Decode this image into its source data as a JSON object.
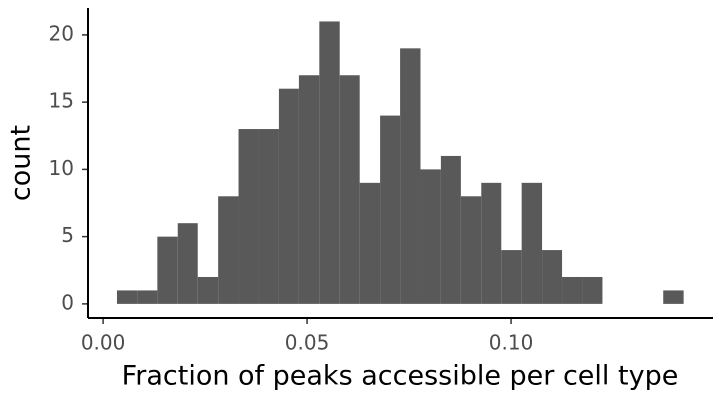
{
  "chart_data": {
    "type": "histogram",
    "x_label": "Fraction of peaks accessible per cell type",
    "y_label": "count",
    "bins": [
      0.0034,
      0.0084,
      0.0133,
      0.0183,
      0.0232,
      0.0282,
      0.0332,
      0.0381,
      0.0431,
      0.048,
      0.053,
      0.058,
      0.0629,
      0.0679,
      0.0728,
      0.0778,
      0.0828,
      0.0877,
      0.0927,
      0.0976,
      0.1026,
      0.1076,
      0.1125,
      0.1175,
      0.1224,
      0.1274,
      0.1324,
      0.1373,
      0.1423
    ],
    "counts": [
      1,
      1,
      5,
      6,
      2,
      8,
      13,
      13,
      16,
      17,
      21,
      17,
      9,
      14,
      19,
      10,
      11,
      8,
      9,
      4,
      9,
      4,
      2,
      2,
      0,
      0,
      0,
      1
    ],
    "color": "#595959",
    "xlim": [
      -0.0037,
      0.1495
    ],
    "ylim": [
      -1.05,
      22
    ],
    "xticks": [
      {
        "value": 0,
        "label": "0.00"
      },
      {
        "value": 0.05,
        "label": "0.05"
      },
      {
        "value": 0.1,
        "label": "0.10"
      }
    ],
    "yticks": [
      0,
      5,
      10,
      15,
      20
    ],
    "grid": false
  }
}
